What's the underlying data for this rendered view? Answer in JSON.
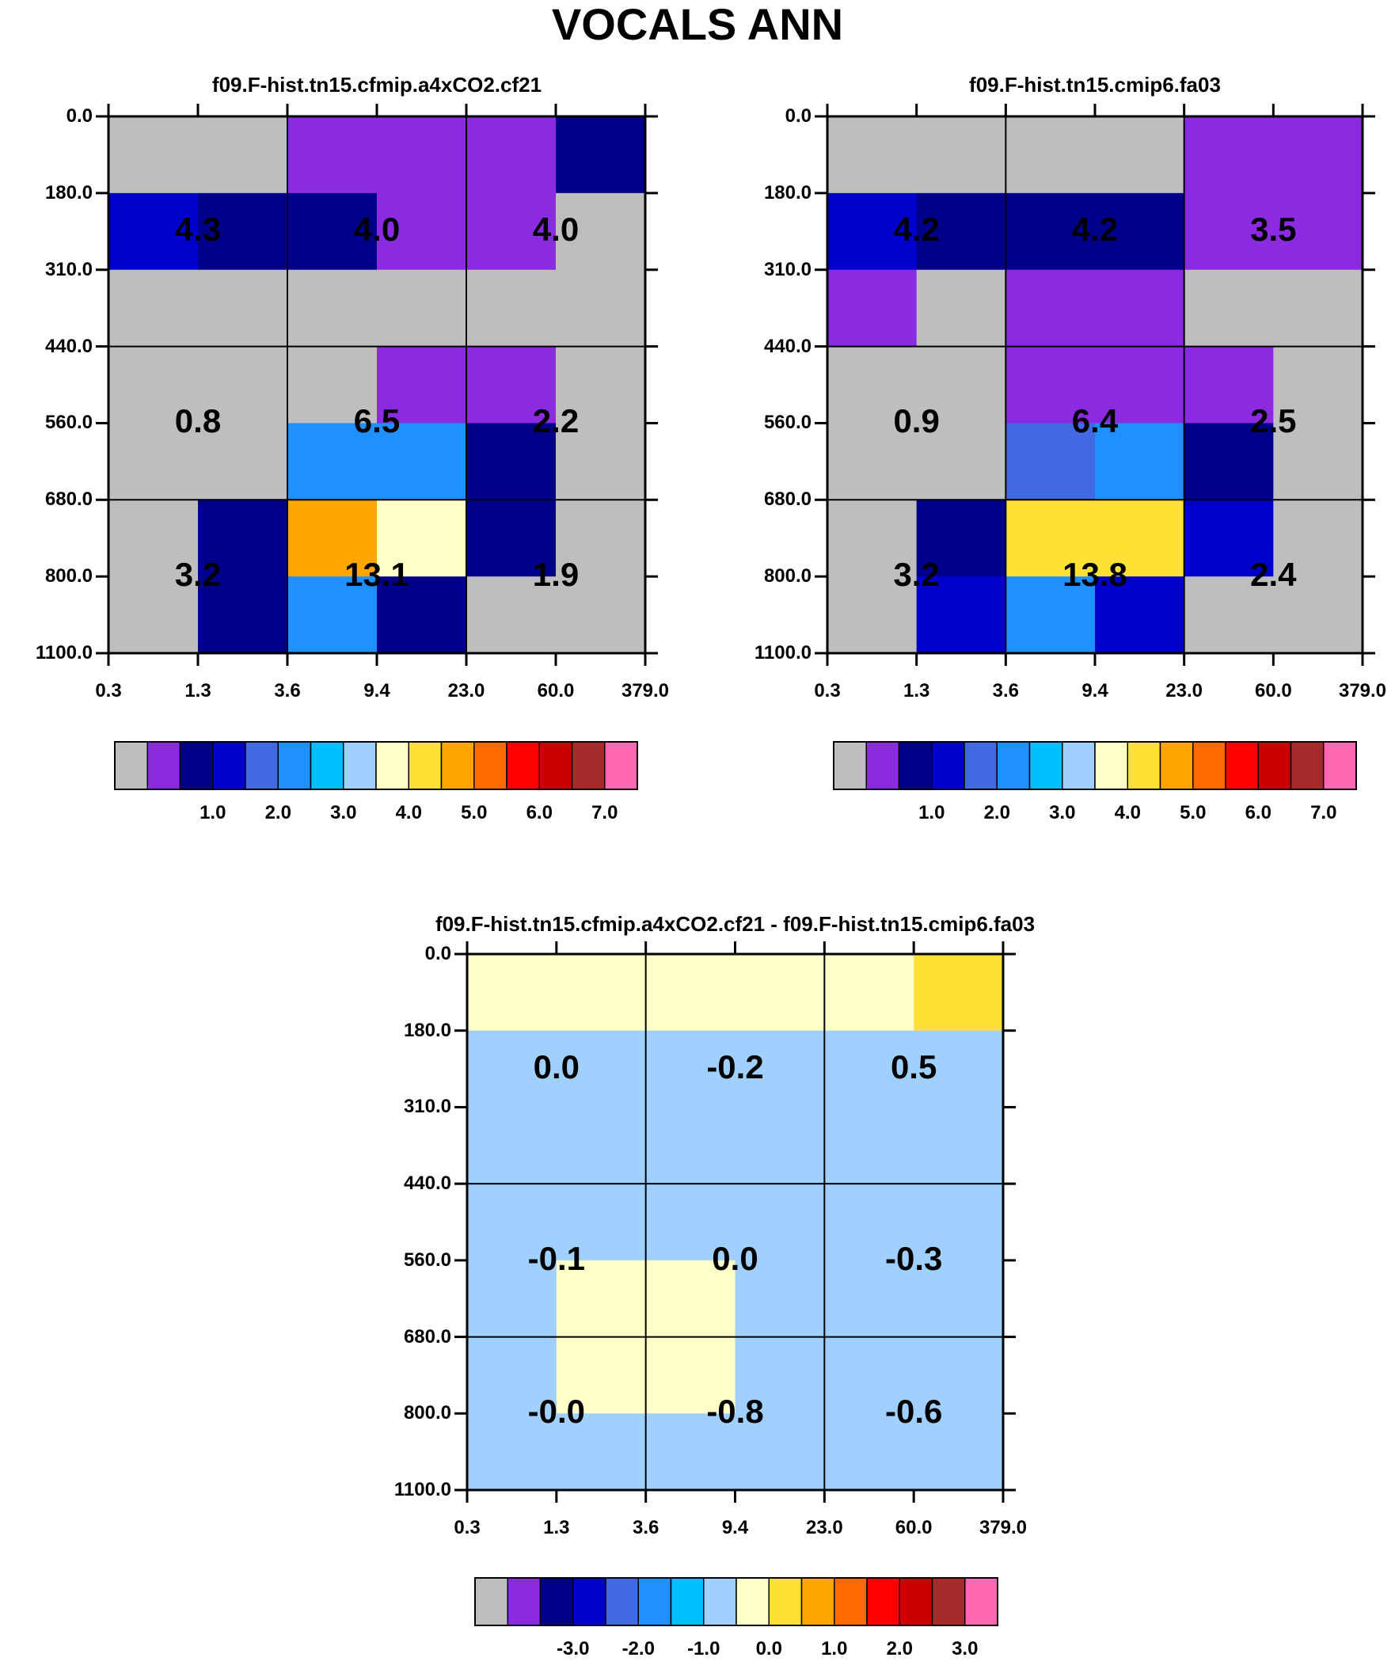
{
  "title": "VOCALS ANN",
  "chart_data": [
    {
      "type": "heatmap",
      "title": "f09.F-hist.tn15.cfmip.a4xCO2.cf21",
      "x_ticks": [
        "0.3",
        "1.3",
        "3.6",
        "9.4",
        "23.0",
        "60.0",
        "379.0"
      ],
      "y_ticks": [
        "0.0",
        "180.0",
        "310.0",
        "440.0",
        "560.0",
        "680.0",
        "800.0",
        "1100.0"
      ],
      "cells": [
        [
          0,
          0,
          1,
          1,
          1,
          2
        ],
        [
          3,
          2,
          2,
          1,
          1,
          0
        ],
        [
          0,
          0,
          0,
          0,
          0,
          0
        ],
        [
          0,
          0,
          0,
          1,
          1,
          0
        ],
        [
          0,
          0,
          5,
          5,
          2,
          0
        ],
        [
          0,
          2,
          10,
          8,
          2,
          0
        ],
        [
          0,
          2,
          5,
          2,
          0,
          0
        ]
      ],
      "box_values": [
        "4.3",
        "4.0",
        "4.0",
        "0.8",
        "6.5",
        "2.2",
        "3.2",
        "13.1",
        "1.9"
      ],
      "colorbar_labels": [
        "1.0",
        "2.0",
        "3.0",
        "4.0",
        "5.0",
        "6.0",
        "7.0"
      ]
    },
    {
      "type": "heatmap",
      "title": "f09.F-hist.tn15.cmip6.fa03",
      "x_ticks": [
        "0.3",
        "1.3",
        "3.6",
        "9.4",
        "23.0",
        "60.0",
        "379.0"
      ],
      "y_ticks": [
        "0.0",
        "180.0",
        "310.0",
        "440.0",
        "560.0",
        "680.0",
        "800.0",
        "1100.0"
      ],
      "cells": [
        [
          0,
          0,
          0,
          0,
          1,
          1
        ],
        [
          3,
          2,
          2,
          2,
          1,
          1
        ],
        [
          1,
          0,
          1,
          1,
          0,
          0
        ],
        [
          0,
          0,
          1,
          1,
          1,
          0
        ],
        [
          0,
          0,
          4,
          5,
          2,
          0
        ],
        [
          0,
          2,
          9,
          9,
          3,
          0
        ],
        [
          0,
          3,
          5,
          3,
          0,
          0
        ]
      ],
      "box_values": [
        "4.2",
        "4.2",
        "3.5",
        "0.9",
        "6.4",
        "2.5",
        "3.2",
        "13.8",
        "2.4"
      ],
      "colorbar_labels": [
        "1.0",
        "2.0",
        "3.0",
        "4.0",
        "5.0",
        "6.0",
        "7.0"
      ]
    },
    {
      "type": "heatmap",
      "title": "f09.F-hist.tn15.cfmip.a4xCO2.cf21 - f09.F-hist.tn15.cmip6.fa03",
      "x_ticks": [
        "0.3",
        "1.3",
        "3.6",
        "9.4",
        "23.0",
        "60.0",
        "379.0"
      ],
      "y_ticks": [
        "0.0",
        "180.0",
        "310.0",
        "440.0",
        "560.0",
        "680.0",
        "800.0",
        "1100.0"
      ],
      "cells": [
        [
          8,
          8,
          8,
          8,
          8,
          9
        ],
        [
          7,
          7,
          7,
          7,
          7,
          7
        ],
        [
          7,
          7,
          7,
          7,
          7,
          7
        ],
        [
          7,
          7,
          7,
          7,
          7,
          7
        ],
        [
          7,
          8,
          8,
          7,
          7,
          7
        ],
        [
          7,
          8,
          8,
          7,
          7,
          7
        ],
        [
          7,
          7,
          7,
          7,
          7,
          7
        ]
      ],
      "box_values": [
        "0.0",
        "-0.2",
        "0.5",
        "-0.1",
        "0.0",
        "-0.3",
        "-0.0",
        "-0.8",
        "-0.6"
      ],
      "colorbar_labels": [
        "-3.0",
        "-2.0",
        "-1.0",
        "0.0",
        "1.0",
        "2.0",
        "3.0"
      ]
    }
  ],
  "palette": [
    "#bebebe",
    "#8a2be2",
    "#00008b",
    "#0000cd",
    "#4169e1",
    "#1e90ff",
    "#00bfff",
    "#a0d0ff",
    "#ffffc8",
    "#ffe135",
    "#ffa500",
    "#ff6a00",
    "#ff0000",
    "#cd0000",
    "#a52a2a",
    "#ff69b4"
  ]
}
